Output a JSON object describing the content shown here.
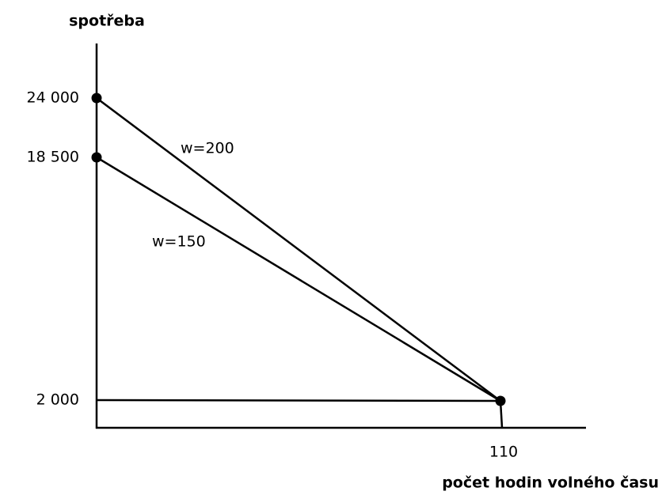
{
  "y_axis": {
    "label": "spotřeba",
    "ticks": [
      "24 000",
      "18 500",
      "2 000"
    ]
  },
  "x_axis": {
    "label": "počet hodin volného času",
    "ticks": [
      "110"
    ]
  },
  "lines": [
    {
      "label": "w=200"
    },
    {
      "label": "w=150"
    }
  ]
}
